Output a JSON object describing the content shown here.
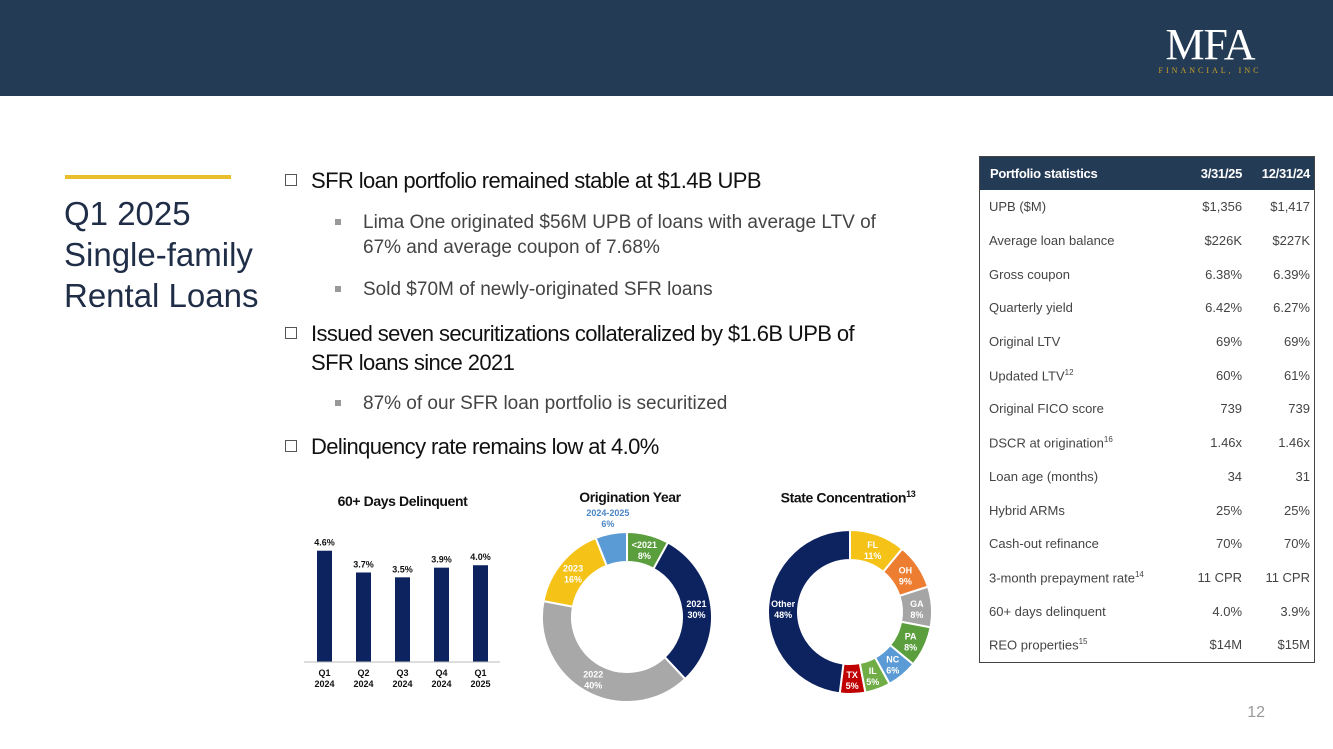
{
  "logo": {
    "mark": "MFA",
    "sub": "FINANCIAL, INC"
  },
  "section_title": "Q1 2025 Single-family Rental Loans",
  "bullets": [
    {
      "level": 1,
      "text": "SFR loan portfolio remained stable at $1.4B UPB"
    },
    {
      "level": 2,
      "text": "Lima One originated $56M UPB of loans with average LTV of 67% and average coupon of 7.68%"
    },
    {
      "level": 2,
      "text": "Sold $70M of newly-originated SFR loans"
    },
    {
      "level": 1,
      "text": "Issued seven securitizations collateralized by $1.6B UPB of SFR loans since 2021"
    },
    {
      "level": 2,
      "text": "87% of our SFR loan portfolio is securitized"
    },
    {
      "level": 1,
      "text": "Delinquency rate remains low at 4.0%"
    }
  ],
  "stats_table": {
    "headers": [
      "Portfolio statistics",
      "3/31/25",
      "12/31/24"
    ],
    "rows": [
      {
        "label": "UPB ($M)",
        "sup": "",
        "q1": "$1,356",
        "q4": "$1,417"
      },
      {
        "label": "Average loan balance",
        "sup": "",
        "q1": "$226K",
        "q4": "$227K"
      },
      {
        "label": "Gross coupon",
        "sup": "",
        "q1": "6.38%",
        "q4": "6.39%"
      },
      {
        "label": "Quarterly yield",
        "sup": "",
        "q1": "6.42%",
        "q4": "6.27%"
      },
      {
        "label": "Original LTV",
        "sup": "",
        "q1": "69%",
        "q4": "69%"
      },
      {
        "label": "Updated LTV",
        "sup": "12",
        "q1": "60%",
        "q4": "61%"
      },
      {
        "label": "Original FICO score",
        "sup": "",
        "q1": "739",
        "q4": "739"
      },
      {
        "label": "DSCR at origination",
        "sup": "16",
        "q1": "1.46x",
        "q4": "1.46x"
      },
      {
        "label": "Loan age (months)",
        "sup": "",
        "q1": "34",
        "q4": "31"
      },
      {
        "label": "Hybrid ARMs",
        "sup": "",
        "q1": "25%",
        "q4": "25%"
      },
      {
        "label": "Cash-out refinance",
        "sup": "",
        "q1": "70%",
        "q4": "70%"
      },
      {
        "label": "3-month prepayment rate",
        "sup": "14",
        "q1": "11 CPR",
        "q4": "11 CPR"
      },
      {
        "label": "60+ days delinquent",
        "sup": "",
        "q1": "4.0%",
        "q4": "3.9%"
      },
      {
        "label": "REO properties",
        "sup": "15",
        "q1": "$14M",
        "q4": "$15M"
      }
    ]
  },
  "chart_data": [
    {
      "type": "bar",
      "title": "60+ Days Delinquent",
      "categories": [
        "Q1 2024",
        "Q2 2024",
        "Q3 2024",
        "Q4 2024",
        "Q1 2025"
      ],
      "category_lines": [
        [
          "Q1",
          "2024"
        ],
        [
          "Q2",
          "2024"
        ],
        [
          "Q3",
          "2024"
        ],
        [
          "Q4",
          "2024"
        ],
        [
          "Q1",
          "2025"
        ]
      ],
      "values": [
        4.6,
        3.7,
        3.5,
        3.9,
        4.0
      ],
      "labels": [
        "4.6%",
        "3.7%",
        "3.5%",
        "3.9%",
        "4.0%"
      ],
      "ylim": [
        0,
        5
      ],
      "color": "#0c2360"
    },
    {
      "type": "pie",
      "title": "Origination Year",
      "slices": [
        {
          "name": "<2021",
          "value": 8,
          "label": "8%",
          "color": "#5a9e3e"
        },
        {
          "name": "2021",
          "value": 30,
          "label": "30%",
          "color": "#0c2360"
        },
        {
          "name": "2022",
          "value": 40,
          "label": "40%",
          "color": "#a8a8a8"
        },
        {
          "name": "2023",
          "value": 16,
          "label": "16%",
          "color": "#f5c218"
        },
        {
          "name": "2024-2025",
          "value": 6,
          "label": "6%",
          "color": "#5b9bd5"
        }
      ]
    },
    {
      "type": "pie",
      "title": "State Concentration",
      "title_sup": "13",
      "slices": [
        {
          "name": "FL",
          "value": 11,
          "label": "11%",
          "color": "#f5c218"
        },
        {
          "name": "OH",
          "value": 9,
          "label": "9%",
          "color": "#ed7d31"
        },
        {
          "name": "GA",
          "value": 8,
          "label": "8%",
          "color": "#a5a5a5"
        },
        {
          "name": "PA",
          "value": 8,
          "label": "8%",
          "color": "#5a9e3e"
        },
        {
          "name": "NC",
          "value": 6,
          "label": "6%",
          "color": "#5b9bd5"
        },
        {
          "name": "IL",
          "value": 5,
          "label": "5%",
          "color": "#70ad47"
        },
        {
          "name": "TX",
          "value": 5,
          "label": "5%",
          "color": "#c00000"
        },
        {
          "name": "Other",
          "value": 48,
          "label": "48%",
          "color": "#0c2360"
        }
      ]
    }
  ],
  "page_number": "12"
}
